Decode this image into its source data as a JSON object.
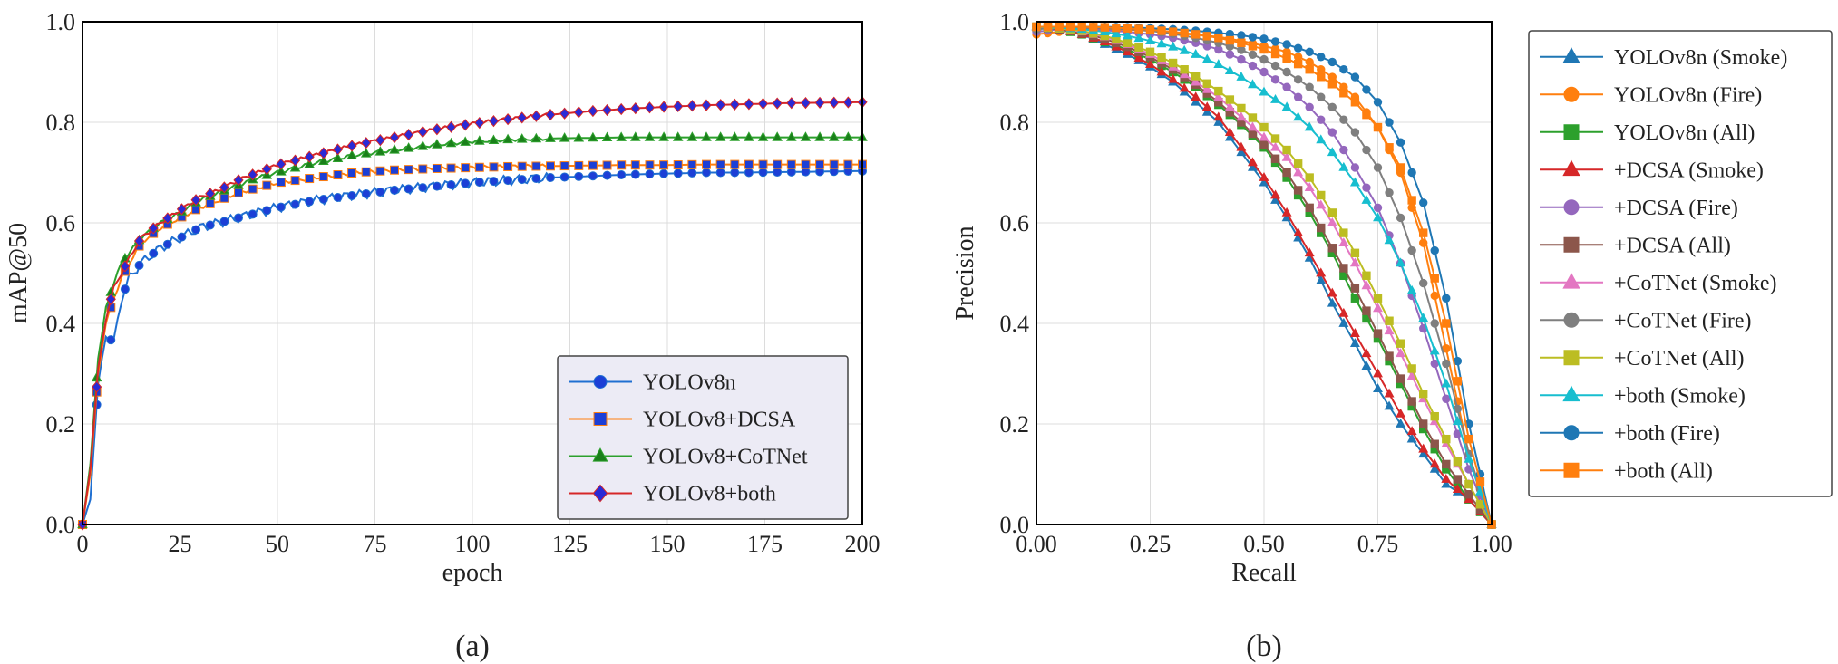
{
  "chart_data": [
    {
      "type": "line",
      "panel_label": "(a)",
      "xlabel": "epoch",
      "ylabel": "mAP@50",
      "xlim": [
        0,
        200
      ],
      "ylim": [
        0,
        1.0
      ],
      "xticks": [
        "0",
        "25",
        "50",
        "75",
        "100",
        "125",
        "150",
        "175",
        "200"
      ],
      "yticks": [
        "0.0",
        "0.2",
        "0.4",
        "0.6",
        "0.8",
        "1.0"
      ],
      "grid": true,
      "legend_position": "bottom-right",
      "x": [
        0,
        2,
        4,
        6,
        8,
        10,
        12,
        15,
        20,
        25,
        30,
        35,
        40,
        45,
        50,
        60,
        70,
        80,
        90,
        100,
        110,
        120,
        130,
        140,
        150,
        160,
        170,
        180,
        190,
        200
      ],
      "series": [
        {
          "name": "YOLOv8n",
          "color": "#1f6fd1",
          "marker": "circle",
          "marker_fill": "#1c3fd6",
          "values": [
            0.0,
            0.05,
            0.28,
            0.38,
            0.36,
            0.45,
            0.49,
            0.52,
            0.55,
            0.57,
            0.59,
            0.6,
            0.61,
            0.62,
            0.63,
            0.645,
            0.655,
            0.665,
            0.672,
            0.68,
            0.685,
            0.69,
            0.693,
            0.696,
            0.698,
            0.7,
            0.7,
            0.701,
            0.702,
            0.703
          ]
        },
        {
          "name": "YOLOv8+DCSA",
          "color": "#ff7f0e",
          "marker": "square",
          "marker_fill": "#1c3fd6",
          "values": [
            0.0,
            0.1,
            0.3,
            0.4,
            0.45,
            0.49,
            0.52,
            0.56,
            0.59,
            0.61,
            0.63,
            0.645,
            0.66,
            0.67,
            0.68,
            0.69,
            0.7,
            0.705,
            0.708,
            0.71,
            0.712,
            0.713,
            0.714,
            0.715,
            0.715,
            0.716,
            0.716,
            0.716,
            0.716,
            0.716
          ]
        },
        {
          "name": "YOLOv8+CoTNet",
          "color": "#2ca02c",
          "marker": "triangle",
          "marker_fill": "#1a7f1a",
          "values": [
            0.0,
            0.12,
            0.33,
            0.43,
            0.48,
            0.52,
            0.54,
            0.57,
            0.6,
            0.62,
            0.645,
            0.66,
            0.675,
            0.69,
            0.7,
            0.72,
            0.735,
            0.745,
            0.755,
            0.762,
            0.766,
            0.768,
            0.769,
            0.77,
            0.77,
            0.77,
            0.77,
            0.77,
            0.77,
            0.77
          ]
        },
        {
          "name": "YOLOv8+both",
          "color": "#d62728",
          "marker": "diamond",
          "marker_fill": "#2a2ad6",
          "values": [
            0.0,
            0.11,
            0.31,
            0.41,
            0.47,
            0.5,
            0.53,
            0.57,
            0.6,
            0.625,
            0.65,
            0.665,
            0.685,
            0.7,
            0.715,
            0.735,
            0.755,
            0.77,
            0.785,
            0.797,
            0.807,
            0.815,
            0.822,
            0.827,
            0.831,
            0.834,
            0.836,
            0.838,
            0.839,
            0.84
          ]
        }
      ]
    },
    {
      "type": "line",
      "panel_label": "(b)",
      "xlabel": "Recall",
      "ylabel": "Precision",
      "xlim": [
        0,
        1.0
      ],
      "ylim": [
        0,
        1.0
      ],
      "xticks": [
        "0.00",
        "0.25",
        "0.50",
        "0.75",
        "1.00"
      ],
      "yticks": [
        "0.0",
        "0.2",
        "0.4",
        "0.6",
        "0.8",
        "1.0"
      ],
      "grid": true,
      "legend_position": "outside-right",
      "x": [
        0.0,
        0.05,
        0.1,
        0.15,
        0.2,
        0.25,
        0.3,
        0.35,
        0.4,
        0.45,
        0.5,
        0.55,
        0.6,
        0.65,
        0.7,
        0.75,
        0.8,
        0.85,
        0.9,
        0.95,
        1.0
      ],
      "series": [
        {
          "name": "YOLOv8n (Smoke)",
          "color": "#1f77b4",
          "marker": "triangle",
          "values": [
            0.99,
            0.985,
            0.975,
            0.955,
            0.935,
            0.91,
            0.88,
            0.84,
            0.8,
            0.74,
            0.68,
            0.61,
            0.53,
            0.44,
            0.36,
            0.27,
            0.2,
            0.14,
            0.08,
            0.05,
            0.0
          ]
        },
        {
          "name": "YOLOv8n (Fire)",
          "color": "#ff7f0e",
          "marker": "circle",
          "values": [
            0.975,
            0.98,
            0.985,
            0.985,
            0.984,
            0.982,
            0.978,
            0.974,
            0.97,
            0.962,
            0.952,
            0.94,
            0.92,
            0.89,
            0.85,
            0.79,
            0.7,
            0.56,
            0.35,
            0.14,
            0.0
          ]
        },
        {
          "name": "YOLOv8n (All)",
          "color": "#2ca02c",
          "marker": "square",
          "values": [
            0.99,
            0.985,
            0.975,
            0.96,
            0.945,
            0.925,
            0.9,
            0.87,
            0.835,
            0.795,
            0.75,
            0.69,
            0.62,
            0.54,
            0.45,
            0.37,
            0.28,
            0.19,
            0.11,
            0.05,
            0.0
          ]
        },
        {
          "name": "+DCSA (Smoke)",
          "color": "#d62728",
          "marker": "triangle",
          "values": [
            0.99,
            0.985,
            0.975,
            0.96,
            0.94,
            0.915,
            0.885,
            0.85,
            0.81,
            0.75,
            0.69,
            0.62,
            0.54,
            0.46,
            0.38,
            0.3,
            0.22,
            0.15,
            0.09,
            0.05,
            0.0
          ]
        },
        {
          "name": "+DCSA (Fire)",
          "color": "#9467bd",
          "marker": "circle",
          "values": [
            0.98,
            0.985,
            0.985,
            0.983,
            0.98,
            0.975,
            0.968,
            0.958,
            0.945,
            0.925,
            0.9,
            0.87,
            0.83,
            0.78,
            0.71,
            0.63,
            0.52,
            0.39,
            0.25,
            0.11,
            0.0
          ]
        },
        {
          "name": "+DCSA (All)",
          "color": "#8c564b",
          "marker": "square",
          "values": [
            0.99,
            0.985,
            0.978,
            0.966,
            0.95,
            0.93,
            0.905,
            0.875,
            0.84,
            0.8,
            0.755,
            0.7,
            0.63,
            0.55,
            0.47,
            0.38,
            0.29,
            0.2,
            0.12,
            0.06,
            0.0
          ]
        },
        {
          "name": "+CoTNet (Smoke)",
          "color": "#e377c2",
          "marker": "triangle",
          "values": [
            0.99,
            0.987,
            0.98,
            0.97,
            0.955,
            0.935,
            0.91,
            0.88,
            0.85,
            0.81,
            0.77,
            0.73,
            0.67,
            0.6,
            0.52,
            0.43,
            0.34,
            0.25,
            0.16,
            0.08,
            0.0
          ]
        },
        {
          "name": "+CoTNet (Fire)",
          "color": "#7f7f7f",
          "marker": "circle",
          "values": [
            0.985,
            0.988,
            0.988,
            0.987,
            0.985,
            0.982,
            0.976,
            0.968,
            0.958,
            0.944,
            0.925,
            0.9,
            0.87,
            0.83,
            0.78,
            0.71,
            0.61,
            0.48,
            0.32,
            0.14,
            0.0
          ]
        },
        {
          "name": "+CoTNet (All)",
          "color": "#bcbd22",
          "marker": "square",
          "values": [
            0.99,
            0.987,
            0.982,
            0.972,
            0.958,
            0.94,
            0.918,
            0.892,
            0.862,
            0.828,
            0.79,
            0.745,
            0.69,
            0.62,
            0.54,
            0.45,
            0.36,
            0.26,
            0.17,
            0.08,
            0.0
          ]
        },
        {
          "name": "+both (Smoke)",
          "color": "#17becf",
          "marker": "triangle",
          "values": [
            0.99,
            0.988,
            0.985,
            0.98,
            0.972,
            0.962,
            0.95,
            0.935,
            0.915,
            0.89,
            0.86,
            0.83,
            0.79,
            0.74,
            0.68,
            0.61,
            0.52,
            0.41,
            0.28,
            0.13,
            0.0
          ]
        },
        {
          "name": "+both (Fire)",
          "color": "#1f77b4",
          "marker": "circle",
          "values": [
            0.99,
            0.99,
            0.99,
            0.99,
            0.989,
            0.987,
            0.985,
            0.982,
            0.978,
            0.973,
            0.966,
            0.955,
            0.94,
            0.92,
            0.89,
            0.84,
            0.76,
            0.64,
            0.45,
            0.2,
            0.0
          ]
        },
        {
          "name": "+both (All)",
          "color": "#ff7f0e",
          "marker": "square",
          "values": [
            0.99,
            0.99,
            0.99,
            0.989,
            0.987,
            0.984,
            0.98,
            0.975,
            0.968,
            0.958,
            0.945,
            0.927,
            0.905,
            0.876,
            0.84,
            0.79,
            0.71,
            0.58,
            0.4,
            0.17,
            0.0
          ]
        }
      ]
    }
  ]
}
